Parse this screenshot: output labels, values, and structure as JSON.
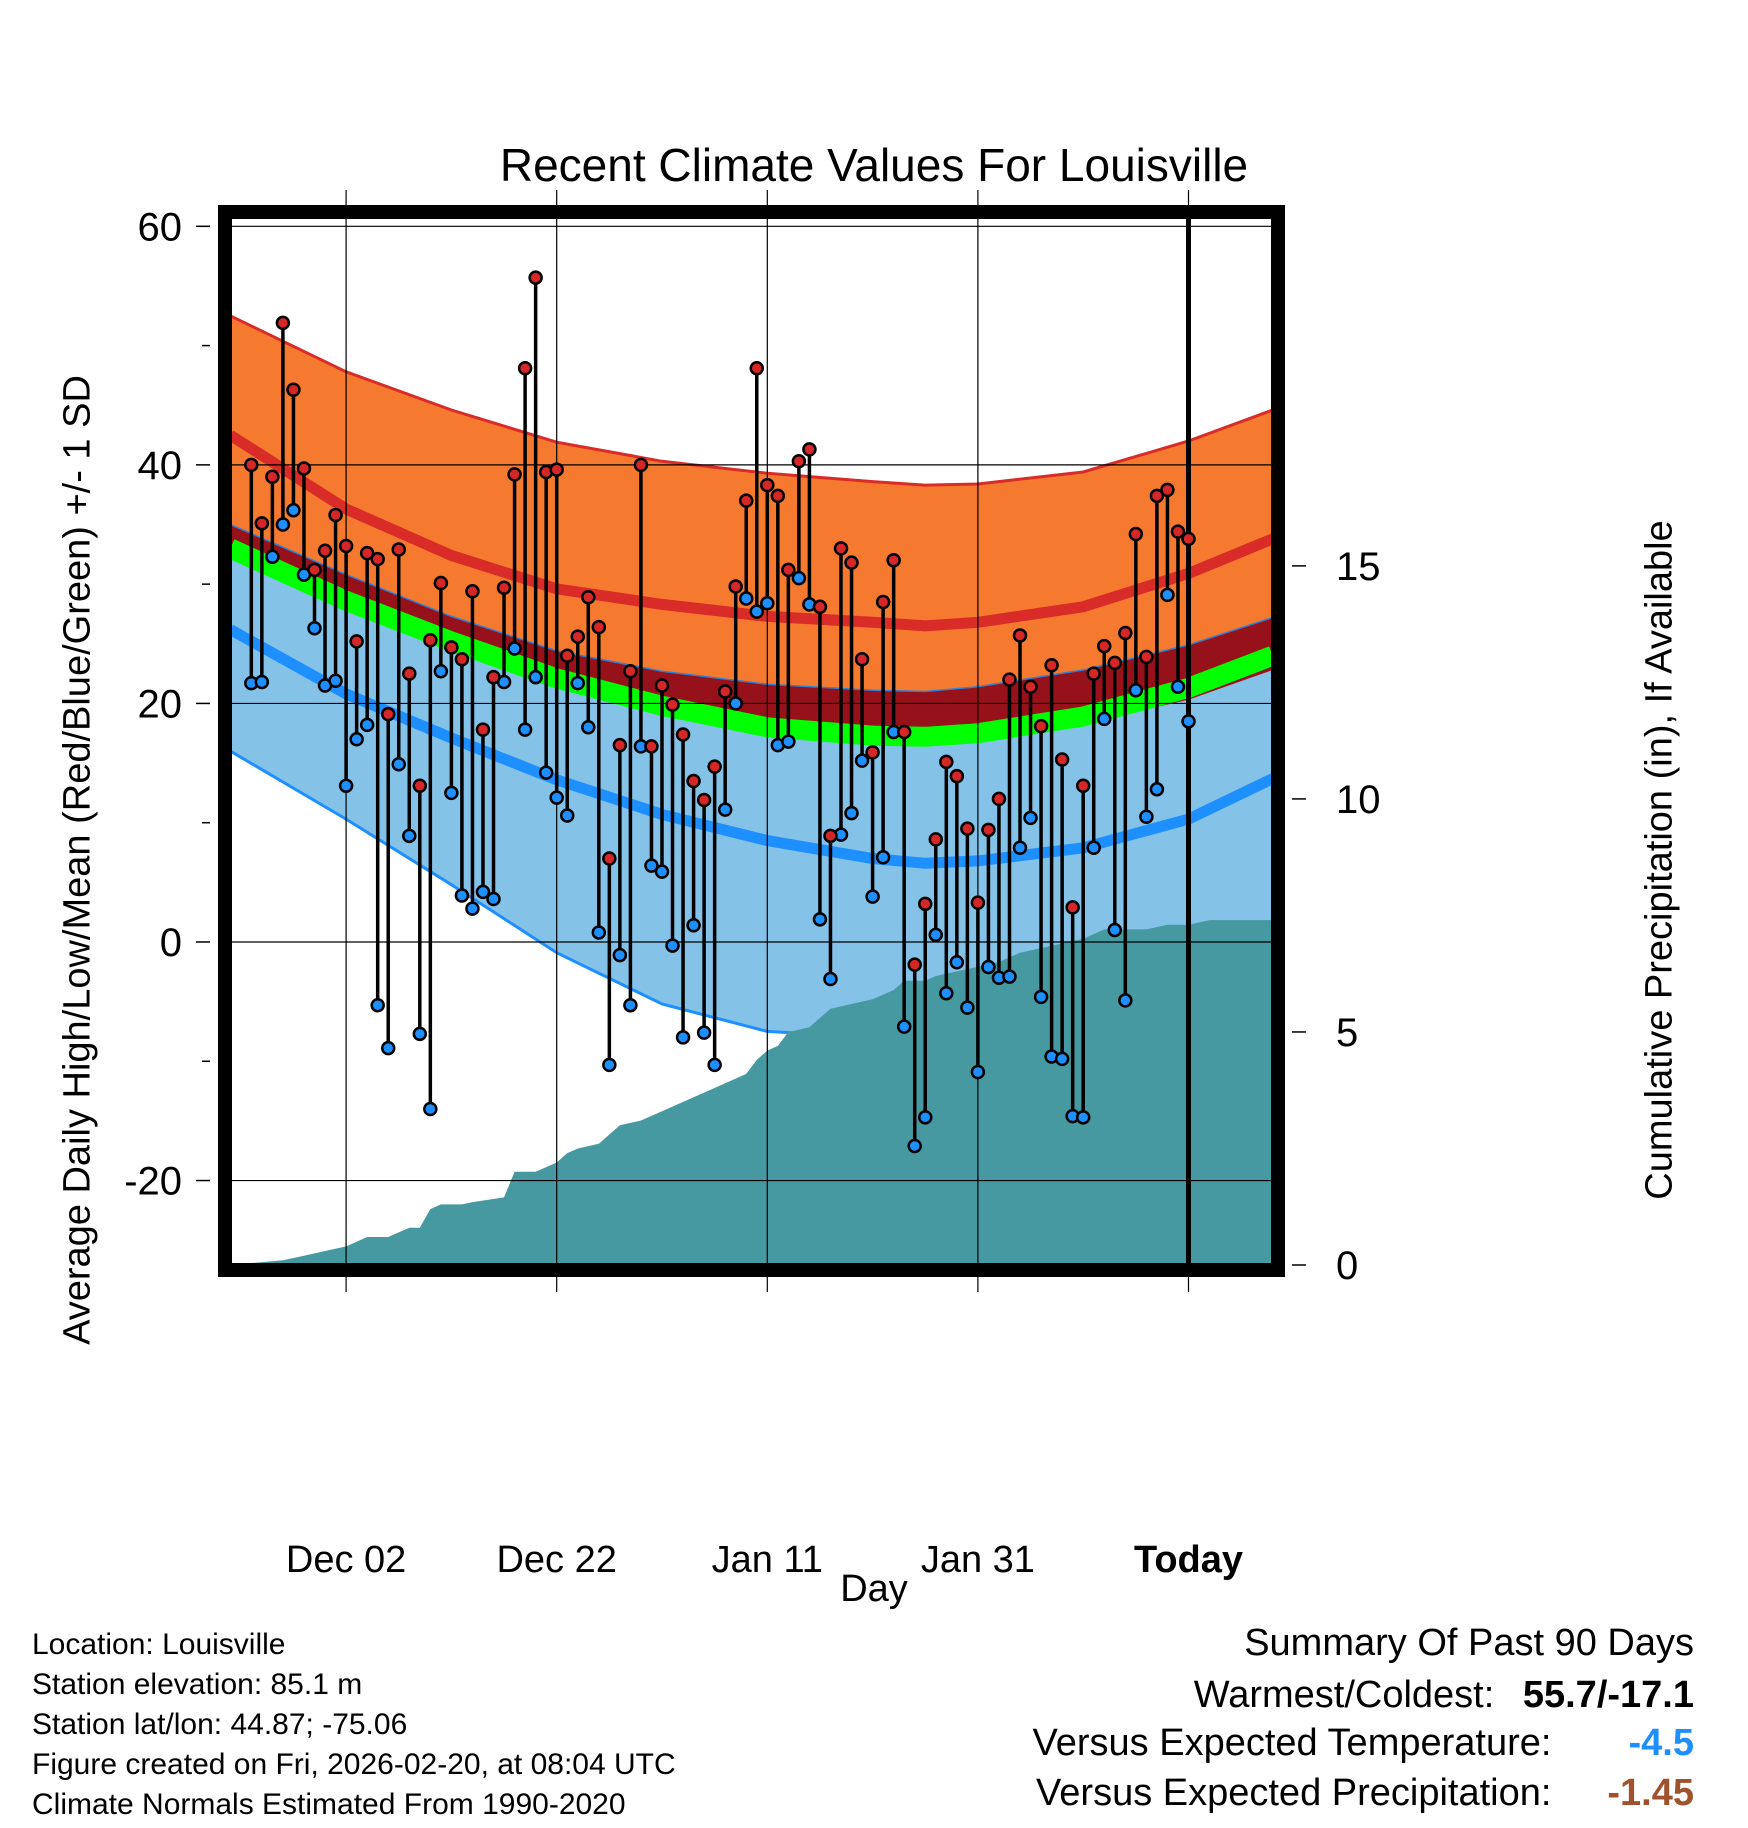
{
  "chart_data": {
    "type": "line",
    "title": "Recent Climate Values For Louisville",
    "xlabel": "Day",
    "ylabel": "Average Daily High/Low/Mean (Red/Blue/Green) +/- 1 SD",
    "y2label": "Cumulative Precipitation (in), If Available",
    "xlim": [
      -11.5,
      88.5
    ],
    "ylim": [
      -27.5,
      61.2
    ],
    "y2lim": [
      0,
      22.7
    ],
    "x_ticks": [
      {
        "x": 0,
        "label": "Dec 02"
      },
      {
        "x": 20,
        "label": "Dec 22"
      },
      {
        "x": 40,
        "label": "Jan 11"
      },
      {
        "x": 60,
        "label": "Jan 31"
      },
      {
        "x": 80,
        "label": "Today"
      }
    ],
    "y_ticks": [
      -20,
      0,
      20,
      40,
      60
    ],
    "y2_ticks": [
      0,
      5,
      10,
      15
    ],
    "today_x": 80,
    "period_label": "90\nDays",
    "normals": {
      "x": [
        -11,
        0,
        10,
        20,
        30,
        40,
        50,
        55,
        60,
        70,
        80,
        88
      ],
      "high_plus_sd": [
        52.5,
        47.8,
        44.6,
        41.9,
        40.3,
        39.3,
        38.6,
        38.3,
        38.4,
        39.4,
        42.0,
        44.6
      ],
      "high_mean": [
        42.5,
        36.3,
        32.4,
        29.6,
        28.3,
        27.3,
        26.8,
        26.5,
        26.8,
        28.1,
        30.9,
        33.8
      ],
      "high_minus_sd": [
        35.0,
        30.8,
        27.3,
        24.4,
        22.7,
        21.6,
        21.1,
        21.0,
        21.4,
        22.8,
        24.9,
        27.2
      ],
      "mean_mean": [
        33.0,
        28.6,
        25.2,
        22.1,
        19.8,
        18.0,
        17.3,
        17.2,
        17.5,
        18.9,
        21.3,
        24.0
      ],
      "low_plus_sd": [
        32.5,
        28.0,
        24.5,
        21.5,
        19.2,
        17.4,
        16.8,
        16.8,
        17.0,
        18.3,
        20.3,
        22.8
      ],
      "low_mean": [
        26.2,
        20.8,
        17.1,
        13.6,
        10.7,
        8.5,
        7.0,
        6.6,
        6.8,
        7.9,
        10.3,
        13.7
      ],
      "low_minus_sd": [
        16.0,
        10.3,
        4.8,
        -0.9,
        -5.2,
        -7.5,
        -8.0,
        -7.9,
        -7.1,
        -4.3,
        -1.5,
        0.6
      ]
    },
    "series": [
      {
        "name": "High",
        "color": "#d62728",
        "values": [
          40.0,
          35.1,
          39.0,
          51.9,
          46.3,
          39.7,
          31.2,
          32.8,
          35.8,
          33.2,
          25.2,
          32.6,
          32.1,
          19.1,
          32.9,
          22.5,
          13.1,
          25.3,
          30.1,
          24.7,
          23.7,
          29.4,
          17.8,
          22.2,
          29.7,
          39.2,
          48.1,
          55.7,
          39.4,
          39.6,
          24.0,
          25.6,
          28.9,
          26.4,
          7.0,
          16.5,
          22.7,
          40.0,
          16.4,
          21.5,
          19.9,
          17.4,
          13.5,
          11.9,
          14.7,
          21.0,
          29.8,
          37.0,
          48.1,
          38.3,
          37.4,
          31.2,
          40.3,
          41.3,
          28.1,
          8.9,
          33.0,
          31.8,
          23.7,
          15.9,
          28.5,
          32.0,
          17.6,
          -1.9,
          3.2,
          8.6,
          15.1,
          13.9,
          9.5,
          3.3,
          9.4,
          12.0,
          22.0,
          25.7,
          21.4,
          18.1,
          23.2,
          15.3,
          2.9,
          13.1,
          22.5,
          24.8,
          23.4,
          25.9,
          34.2,
          23.9,
          37.4,
          37.9,
          34.4,
          33.8
        ]
      },
      {
        "name": "Low",
        "color": "#1e8fff",
        "values": [
          21.7,
          21.8,
          32.3,
          35.0,
          36.2,
          30.8,
          26.3,
          21.5,
          21.9,
          13.1,
          17.0,
          18.2,
          -5.3,
          -8.9,
          14.9,
          8.9,
          -7.7,
          -14.0,
          22.7,
          12.5,
          3.9,
          2.8,
          4.2,
          3.6,
          21.8,
          24.6,
          17.8,
          22.2,
          14.2,
          12.1,
          10.6,
          21.7,
          18.0,
          0.8,
          -10.3,
          -1.1,
          -5.3,
          16.4,
          6.4,
          5.9,
          -0.3,
          -8.0,
          1.4,
          -7.6,
          -10.3,
          11.1,
          20.0,
          28.8,
          27.7,
          28.4,
          16.5,
          16.8,
          30.5,
          28.3,
          1.9,
          -3.1,
          9.0,
          10.8,
          15.2,
          3.8,
          7.1,
          17.6,
          -7.1,
          -17.1,
          -14.7,
          0.6,
          -4.3,
          -1.7,
          -5.5,
          -10.9,
          -2.1,
          -3.0,
          -2.9,
          7.9,
          10.4,
          -4.6,
          -9.6,
          -9.8,
          -14.6,
          -14.7,
          7.9,
          18.7,
          1.0,
          -4.9,
          21.1,
          10.5,
          12.8,
          29.1,
          21.4,
          18.5
        ]
      }
    ],
    "precip": {
      "x": [
        -11,
        -6,
        -4,
        -2,
        0,
        1,
        2,
        4,
        5,
        6,
        7,
        8,
        9,
        10,
        11,
        12,
        15,
        16,
        17,
        18,
        20,
        21,
        22,
        24,
        26,
        28,
        30,
        32,
        34,
        36,
        38,
        39,
        40,
        41,
        42,
        44,
        46,
        48,
        50,
        52,
        53,
        54,
        55,
        56,
        58,
        60,
        62,
        64,
        66,
        68,
        70,
        72,
        74,
        76,
        78,
        80,
        82,
        84,
        86,
        88
      ],
      "values": [
        0.0,
        0.1,
        0.2,
        0.3,
        0.4,
        0.5,
        0.6,
        0.6,
        0.7,
        0.8,
        0.8,
        1.2,
        1.3,
        1.3,
        1.3,
        1.35,
        1.45,
        2.0,
        2.0,
        2.0,
        2.2,
        2.4,
        2.5,
        2.6,
        3.0,
        3.1,
        3.3,
        3.5,
        3.7,
        3.9,
        4.1,
        4.4,
        4.6,
        4.7,
        5.0,
        5.1,
        5.5,
        5.6,
        5.7,
        5.9,
        6.1,
        6.1,
        6.1,
        6.2,
        6.3,
        6.4,
        6.5,
        6.7,
        6.8,
        6.9,
        7.0,
        7.2,
        7.2,
        7.2,
        7.3,
        7.3,
        7.4,
        7.4,
        7.4,
        7.4
      ]
    },
    "colors": {
      "high_band": "#f57a2f",
      "high_mean_line": "#d92b27",
      "mid_band": "#97111a",
      "mean_band": "#00ff00",
      "low_band": "#85c2e8",
      "low_mean_line": "#1e8fff",
      "precip_fill": "#4799a1"
    }
  },
  "info": {
    "location": "Location: Louisville",
    "elevation": "Station elevation: 85.1 m",
    "latlon": "Station lat/lon: 44.87; -75.06",
    "created": "Figure created on Fri, 2026-02-20, at 08:04 UTC",
    "normals": "Climate Normals Estimated From 1990-2020"
  },
  "summary": {
    "heading": "Summary Of Past 90 Days",
    "warmest_label": "Warmest/Coldest:",
    "warmest_value": "55.7/-17.1",
    "temp_label": "Versus Expected Temperature:",
    "temp_value": "-4.5",
    "temp_color": "#1e8fff",
    "precip_label": "Versus Expected Precipitation:",
    "precip_value": "-1.45",
    "precip_color": "#a0522d"
  }
}
